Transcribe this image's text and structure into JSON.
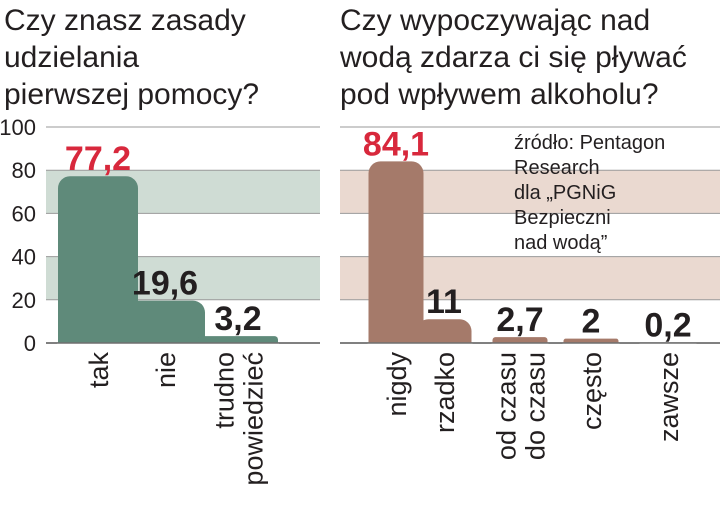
{
  "colors": {
    "left_bar": "#5f8a7a",
    "left_band": "#cfdcd4",
    "right_bar": "#a57a6a",
    "right_band": "#ead9d0",
    "highlight_label": "#d8283c",
    "text": "#231f20"
  },
  "left": {
    "title_lines": [
      "Czy znasz zasady",
      "udzielania",
      "pierwszej pomocy?"
    ]
  },
  "right": {
    "title_lines": [
      "Czy wypoczywając nad",
      "wodą zdarza ci się pływać",
      "pod wpływem alkoholu?"
    ],
    "source_lines": [
      "źródło: Pentagon",
      "Research",
      "dla „PGNiG",
      "Bezpieczni",
      "nad wodą”"
    ]
  },
  "chart_data": [
    {
      "type": "bar",
      "title": "Czy znasz zasady udzielania pierwszej pomocy?",
      "categories": [
        [
          "tak"
        ],
        [
          "nie"
        ],
        [
          "trudno",
          "powiedzieć"
        ]
      ],
      "values": [
        77.2,
        19.6,
        3.2
      ],
      "value_labels": [
        "77,2",
        "19,6",
        "3,2"
      ],
      "highlight_index": 0,
      "yticks": [
        "100",
        "80",
        "60",
        "40",
        "20",
        "0"
      ],
      "ylim": [
        0,
        100
      ],
      "grid": true
    },
    {
      "type": "bar",
      "title": "Czy wypoczywając nad wodą zdarza ci się pływać pod wpływem alkoholu?",
      "categories": [
        [
          "nigdy"
        ],
        [
          "rzadko"
        ],
        [
          "od czasu",
          "do czasu"
        ],
        [
          "często"
        ],
        [
          "zawsze"
        ]
      ],
      "values": [
        84.1,
        11,
        2.7,
        2,
        0.2
      ],
      "value_labels": [
        "84,1",
        "11",
        "2,7",
        "2",
        "0,2"
      ],
      "highlight_index": 0,
      "ylim": [
        0,
        100
      ],
      "grid": true
    }
  ]
}
